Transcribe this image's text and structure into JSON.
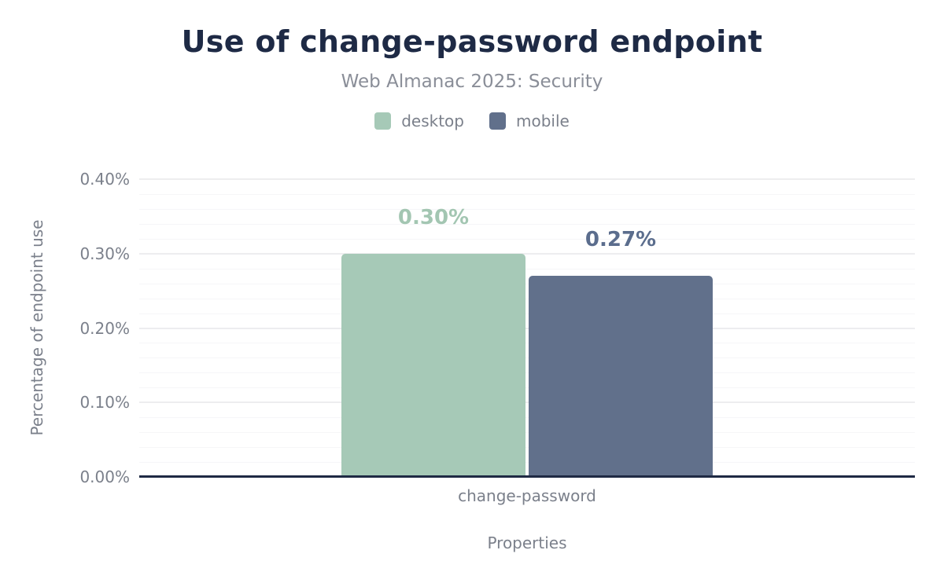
{
  "chart_data": {
    "type": "bar",
    "title": "Use of change-password endpoint",
    "subtitle": "Web Almanac 2025: Security",
    "categories": [
      "change-password"
    ],
    "series": [
      {
        "name": "desktop",
        "values": [
          0.3
        ],
        "value_labels": [
          "0.30%"
        ],
        "color": "#a6c9b7",
        "label_color": "#a3c6b2"
      },
      {
        "name": "mobile",
        "values": [
          0.27
        ],
        "value_labels": [
          "0.27%"
        ],
        "color": "#61708b",
        "label_color": "#5b6d8d"
      }
    ],
    "xlabel": "Properties",
    "ylabel": "Percentage of endpoint use",
    "ylim": [
      0,
      0.4
    ],
    "yticks": [
      {
        "value": 0.0,
        "label": "0.00%"
      },
      {
        "value": 0.1,
        "label": "0.10%"
      },
      {
        "value": 0.2,
        "label": "0.20%"
      },
      {
        "value": 0.3,
        "label": "0.30%"
      },
      {
        "value": 0.4,
        "label": "0.40%"
      }
    ],
    "minor_grid_step": 0.02,
    "grid": true,
    "legend_position": "top",
    "unit": "percent"
  },
  "colors": {
    "background": "#ffffff",
    "title": "#1e2a45",
    "subtitle": "#8a8e98",
    "tick_text": "#7b808b",
    "axis_line": "#1f2a44",
    "grid_major": "#ededef",
    "grid_minor": "#f6f6f8"
  }
}
